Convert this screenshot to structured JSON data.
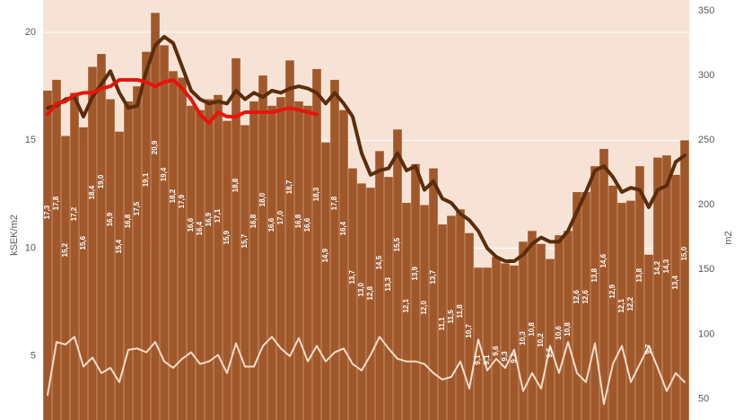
{
  "chart_data": {
    "type": "bar",
    "y_label": "kSEK/m2",
    "y2_label": "m2",
    "ylim": [
      2,
      21
    ],
    "yticks": [
      5,
      10,
      15,
      20
    ],
    "y2lim": [
      33,
      350
    ],
    "y2ticks": [
      50,
      100,
      150,
      200,
      250,
      300,
      350
    ],
    "grid": true,
    "series": [
      {
        "type": "bar",
        "color": "#a0582b",
        "values": [
          17.3,
          17.8,
          15.2,
          17.2,
          15.6,
          18.4,
          19.0,
          16.9,
          15.4,
          16.8,
          17.5,
          19.1,
          20.9,
          19.4,
          18.2,
          17.9,
          16.6,
          16.4,
          16.9,
          17.1,
          15.9,
          18.8,
          15.7,
          16.8,
          18.0,
          16.6,
          17.0,
          18.7,
          16.8,
          16.6,
          18.3,
          14.9,
          17.8,
          16.4,
          13.7,
          13.0,
          12.8,
          14.5,
          13.3,
          15.5,
          12.1,
          13.9,
          12.0,
          13.7,
          11.1,
          11.5,
          11.8,
          10.7,
          9.1,
          9.1,
          9.6,
          9.3,
          9.2,
          10.3,
          10.8,
          10.2,
          9.5,
          10.6,
          10.8,
          12.6,
          12.6,
          13.8,
          14.6,
          12.9,
          12.1,
          12.2,
          13.8,
          9.7,
          14.2,
          14.3,
          13.4,
          15.0
        ],
        "value_labels": [
          "17,3",
          "17,8",
          "15,2",
          "17,2",
          "15,6",
          "18,4",
          "19,0",
          "16,9",
          "15,4",
          "16,8",
          "17,5",
          "19,1",
          "20,9",
          "19,4",
          "18,2",
          "17,9",
          "16,6",
          "16,4",
          "16,9",
          "17,1",
          "15,9",
          "18,8",
          "15,7",
          "16,8",
          "18,0",
          "16,6",
          "17,0",
          "18,7",
          "16,8",
          "16,6",
          "18,3",
          "14,9",
          "17,8",
          "16,4",
          "13,7",
          "13,0",
          "12,8",
          "14,5",
          "13,3",
          "15,5",
          "12,1",
          "13,9",
          "12,0",
          "13,7",
          "11,1",
          "11,5",
          "11,8",
          "10,7",
          "9,1",
          "9,1",
          "9,6",
          "9,3",
          "9,2",
          "10,3",
          "10,8",
          "10,2",
          "9,5",
          "10,6",
          "10,8",
          "12,6",
          "12,6",
          "13,8",
          "14,6",
          "12,9",
          "12,1",
          "12,2",
          "13,8",
          "9,7",
          "14,2",
          "14,3",
          "13,4",
          "15,0"
        ]
      },
      {
        "type": "line",
        "color": "#5a2d0c",
        "values": [
          16.5,
          16.6,
          16.9,
          17.0,
          16.1,
          17.0,
          17.6,
          18.2,
          17.2,
          16.5,
          16.6,
          18.2,
          19.4,
          19.8,
          19.5,
          18.4,
          17.3,
          16.9,
          16.7,
          16.8,
          16.7,
          17.3,
          16.9,
          17.2,
          17.0,
          17.3,
          17.2,
          17.4,
          17.5,
          17.4,
          17.2,
          16.7,
          17.2,
          16.7,
          16.1,
          14.4,
          13.4,
          13.6,
          13.7,
          14.4,
          13.6,
          13.8,
          12.7,
          13.1,
          12.3,
          12.1,
          11.6,
          11.3,
          10.8,
          10.0,
          9.6,
          9.4,
          9.4,
          9.7,
          10.2,
          10.5,
          10.3,
          10.3,
          10.8,
          11.7,
          12.6,
          13.6,
          13.8,
          13.3,
          12.6,
          12.8,
          12.7,
          11.9,
          12.7,
          12.9,
          14.0,
          14.3
        ]
      },
      {
        "type": "line",
        "color": "#e8140c",
        "values": [
          16.2,
          16.7,
          16.8,
          17.1,
          17.2,
          17.2,
          17.4,
          17.5,
          17.8,
          17.8,
          17.8,
          17.7,
          17.5,
          17.7,
          17.8,
          17.4,
          16.9,
          16.2,
          15.8,
          16.3,
          16.1,
          16.1,
          16.3,
          16.3,
          16.3,
          16.3,
          16.4,
          16.5,
          16.4,
          16.3,
          16.2,
          null,
          null,
          null,
          null,
          null,
          null,
          null,
          null,
          null,
          null,
          null,
          null,
          null,
          null,
          null,
          null,
          null,
          null,
          null,
          null,
          null,
          null,
          null,
          null,
          null,
          null,
          null,
          null,
          null,
          null,
          null,
          null,
          null,
          null,
          null,
          null,
          null,
          null,
          null,
          null,
          null
        ]
      },
      {
        "type": "line",
        "axis": "y2",
        "color": "#f3dcc8",
        "values": [
          53,
          94,
          92,
          98,
          75,
          82,
          70,
          74,
          63,
          88,
          89,
          86,
          94,
          79,
          74,
          81,
          86,
          77,
          79,
          84,
          70,
          93,
          75,
          75,
          91,
          98,
          89,
          83,
          97,
          79,
          91,
          79,
          86,
          89,
          77,
          72,
          84,
          98,
          89,
          81,
          79,
          79,
          77,
          70,
          65,
          67,
          79,
          58,
          96,
          72,
          81,
          74,
          88,
          56,
          70,
          58,
          91,
          70,
          94,
          70,
          63,
          93,
          46,
          77,
          91,
          63,
          77,
          91,
          74,
          56,
          70,
          63
        ]
      }
    ]
  }
}
